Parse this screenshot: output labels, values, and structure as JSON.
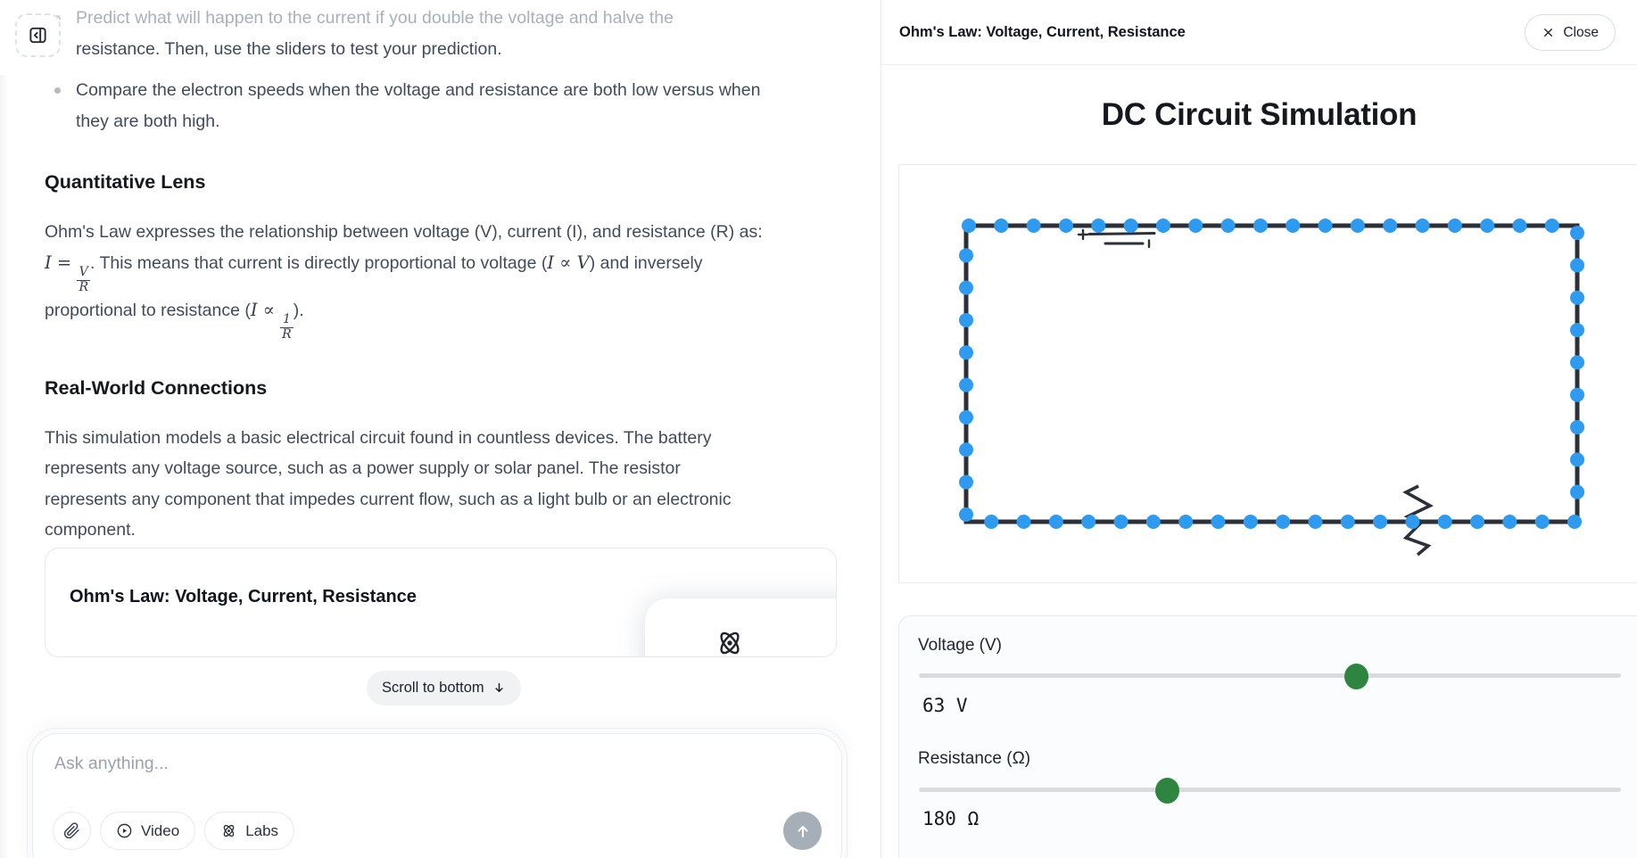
{
  "left": {
    "bullet1_line1": "Predict what will happen to the current if you double the voltage and halve the",
    "bullet1_line2": "resistance. Then, use the sliders to test your prediction.",
    "bullet2": "Compare the electron speeds when the voltage and resistance are both low versus when\nthey are both high.",
    "quant": {
      "heading": "Quantitative Lens",
      "line1": "Ohm's Law expresses the relationship between voltage (V), current (I), and resistance (R) as:",
      "l2_lhs": "I",
      "l2_rel": " = ",
      "l2_num": "V",
      "l2_den": "R",
      "l2_a": ". This means that current is directly proportional to voltage (",
      "l2_prop": "I ∝ V",
      "l2_b": ") and inversely",
      "l3_a": "proportional to resistance (",
      "l3_lhs": "I",
      "l3_rel": " ∝ ",
      "l3_num": "1",
      "l3_den": "R",
      "l3_b": ")."
    },
    "real": {
      "heading": "Real-World Connections",
      "body": "This simulation models a basic electrical circuit found in countless devices. The battery\nrepresents any voltage source, such as a power supply or solar panel. The resistor\nrepresents any component that impedes current flow, such as a light bulb or an electronic\ncomponent."
    },
    "card_title": "Ohm's Law: Voltage, Current, Resistance",
    "scroll_label": "Scroll to bottom",
    "composer": {
      "placeholder": "Ask anything...",
      "video": "Video",
      "labs": "Labs"
    }
  },
  "right": {
    "header_title": "Ohm's Law: Voltage, Current, Resistance",
    "close_label": "Close",
    "sim": {
      "title": "DC Circuit Simulation",
      "voltage_label": "Voltage (V)",
      "voltage_value": 63,
      "voltage_display": "63 V",
      "voltage_percent": 62.3,
      "resistance_label": "Resistance (Ω)",
      "resistance_value": 180,
      "resistance_display": "180 Ω",
      "resistance_percent": 35.4,
      "electron_count": 56,
      "colors": {
        "electron": "#2e9bf0",
        "wire": "#2c3038",
        "slider_thumb": "#2e8540",
        "slider_track": "#d9dbde"
      }
    }
  }
}
